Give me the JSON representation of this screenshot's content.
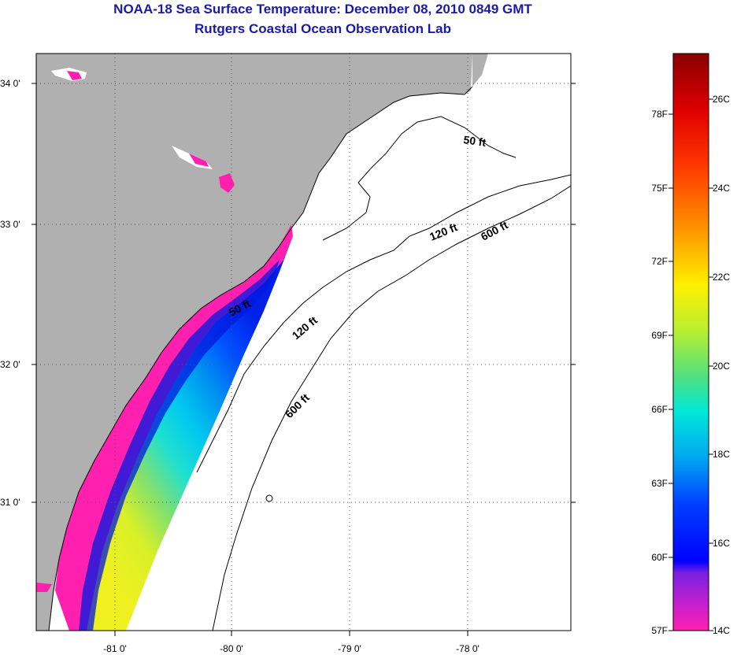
{
  "header": {
    "title": "NOAA-18 Sea Surface Temperature:  December 08, 2010 0849 GMT",
    "subtitle": "Rutgers Coastal Ocean Observation Lab"
  },
  "map": {
    "latitude_labels": [
      "34 0'",
      "33 0'",
      "32 0'",
      "31 0'"
    ],
    "longitude_labels": [
      "-81 0'",
      "-80 0'",
      "-79 0'",
      "-78 0'"
    ],
    "contour_labels": [
      "50 ft",
      "120 ft",
      "600 ft",
      "50 ft",
      "120 ft",
      "600 ft"
    ],
    "colors": {
      "land": "#b0b0b0",
      "ocean_no_data": "#ffffff",
      "coast_line": "#000000"
    }
  },
  "colorbar": {
    "fahrenheit_labels": [
      "78F",
      "75F",
      "72F",
      "69F",
      "66F",
      "63F",
      "60F",
      "57F"
    ],
    "celsius_labels": [
      "26C",
      "24C",
      "22C",
      "20C",
      "18C",
      "16C",
      "14C"
    ]
  }
}
